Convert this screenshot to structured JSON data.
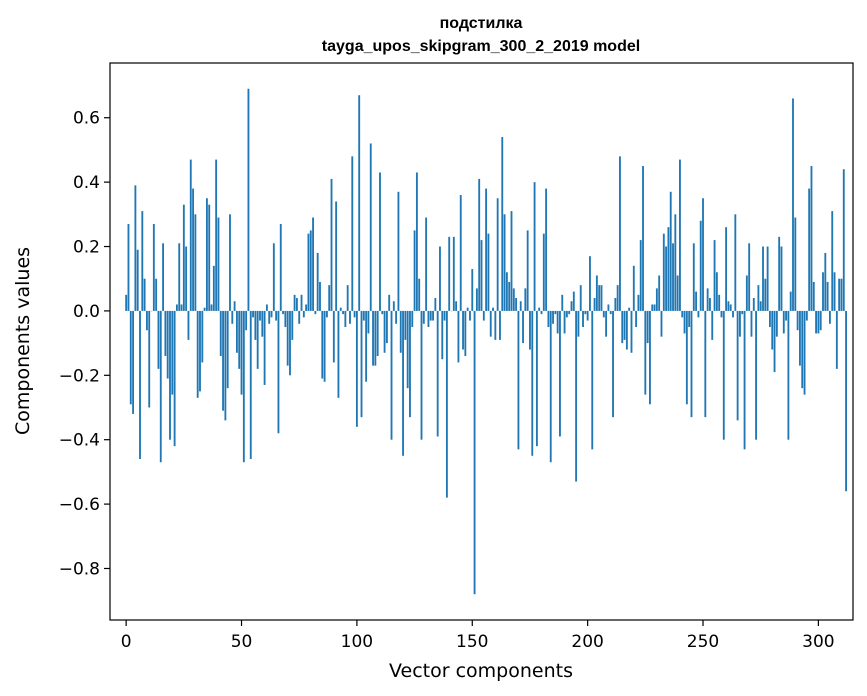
{
  "chart_data": {
    "type": "bar",
    "title_line1": "подстилка",
    "title_line2": "tayga_upos_skipgram_300_2_2019 model",
    "xlabel": "Vector components",
    "ylabel": "Components values",
    "xlim": [
      -7,
      315
    ],
    "ylim": [
      -0.96,
      0.77
    ],
    "xticks": [
      0,
      50,
      100,
      150,
      200,
      250,
      300
    ],
    "xtick_labels": [
      "0",
      "50",
      "100",
      "150",
      "200",
      "250",
      "300"
    ],
    "yticks": [
      0.6,
      0.4,
      0.2,
      0.0,
      -0.2,
      -0.4,
      -0.6,
      -0.8
    ],
    "ytick_labels": [
      "0.6",
      "0.4",
      "0.2",
      "0.0",
      "−0.2",
      "−0.4",
      "−0.6",
      "−0.8"
    ],
    "bar_color": "#1f77b4",
    "values": [
      0.05,
      0.27,
      -0.29,
      -0.32,
      0.39,
      0.19,
      -0.46,
      0.31,
      0.1,
      -0.06,
      -0.3,
      0.0,
      0.27,
      0.1,
      -0.18,
      -0.47,
      0.21,
      -0.14,
      -0.21,
      -0.4,
      -0.26,
      -0.42,
      0.02,
      0.21,
      0.02,
      0.33,
      0.2,
      -0.09,
      0.47,
      0.38,
      0.3,
      -0.27,
      -0.25,
      -0.16,
      0.01,
      0.35,
      0.33,
      0.02,
      0.14,
      0.47,
      0.29,
      -0.14,
      -0.31,
      -0.34,
      -0.24,
      0.3,
      -0.04,
      0.03,
      -0.13,
      -0.18,
      -0.26,
      -0.47,
      -0.06,
      0.69,
      -0.46,
      -0.02,
      -0.09,
      -0.18,
      -0.03,
      -0.08,
      -0.23,
      0.02,
      -0.04,
      -0.02,
      0.21,
      -0.03,
      -0.38,
      0.27,
      -0.01,
      -0.05,
      -0.17,
      -0.2,
      -0.09,
      0.05,
      0.04,
      -0.04,
      0.05,
      -0.02,
      0.02,
      0.24,
      0.25,
      0.29,
      -0.01,
      0.18,
      0.09,
      -0.21,
      -0.22,
      -0.02,
      0.08,
      0.41,
      -0.16,
      0.34,
      -0.27,
      0.01,
      -0.01,
      -0.05,
      0.08,
      -0.04,
      0.48,
      -0.02,
      -0.36,
      0.67,
      -0.33,
      -0.03,
      -0.22,
      -0.07,
      0.52,
      -0.17,
      -0.17,
      -0.14,
      0.43,
      -0.01,
      -0.13,
      -0.1,
      0.05,
      -0.4,
      0.03,
      -0.04,
      0.37,
      -0.13,
      -0.45,
      -0.09,
      -0.24,
      -0.33,
      -0.05,
      0.25,
      0.43,
      0.1,
      -0.4,
      -0.04,
      0.29,
      -0.05,
      -0.03,
      -0.03,
      0.04,
      -0.39,
      0.2,
      -0.15,
      -0.03,
      -0.58,
      0.23,
      0.0,
      0.23,
      0.03,
      -0.16,
      0.36,
      -0.12,
      -0.14,
      0.01,
      -0.03,
      0.13,
      -0.88,
      0.07,
      0.41,
      0.22,
      -0.03,
      0.38,
      0.24,
      -0.08,
      0.01,
      -0.09,
      0.35,
      -0.09,
      0.54,
      0.3,
      0.12,
      0.09,
      0.31,
      0.07,
      0.04,
      -0.43,
      0.03,
      -0.1,
      0.07,
      0.25,
      -0.12,
      -0.45,
      0.4,
      -0.42,
      0.01,
      -0.01,
      0.24,
      0.38,
      -0.05,
      -0.47,
      -0.04,
      -0.01,
      -0.07,
      -0.39,
      0.05,
      -0.07,
      -0.02,
      -0.01,
      0.03,
      0.06,
      -0.53,
      -0.08,
      0.08,
      -0.05,
      -0.01,
      -0.03,
      0.17,
      -0.43,
      0.04,
      0.11,
      0.08,
      0.08,
      -0.02,
      -0.08,
      0.02,
      -0.01,
      -0.33,
      0.04,
      0.08,
      0.48,
      -0.1,
      -0.09,
      -0.12,
      0.01,
      -0.13,
      0.14,
      -0.05,
      0.05,
      0.22,
      0.45,
      -0.26,
      -0.1,
      -0.29,
      0.02,
      0.02,
      0.07,
      0.11,
      -0.08,
      0.24,
      0.2,
      0.26,
      0.37,
      0.21,
      0.3,
      0.11,
      0.47,
      -0.02,
      -0.07,
      -0.29,
      -0.05,
      -0.33,
      0.21,
      0.06,
      -0.02,
      0.28,
      0.35,
      -0.33,
      0.07,
      0.04,
      -0.09,
      0.22,
      0.12,
      0.05,
      -0.02,
      -0.4,
      0.26,
      0.03,
      0.02,
      -0.02,
      0.3,
      -0.34,
      -0.08,
      -0.01,
      -0.43,
      0.11,
      0.21,
      -0.08,
      0.04,
      -0.4,
      0.08,
      0.03,
      0.2,
      0.1,
      0.2,
      -0.05,
      -0.12,
      -0.19,
      -0.08,
      0.23,
      0.2,
      -0.07,
      -0.03,
      -0.4,
      0.06,
      0.66,
      0.29,
      -0.06,
      -0.17,
      -0.24,
      -0.26,
      -0.03,
      0.38,
      0.45,
      0.09,
      -0.07,
      -0.07,
      -0.06,
      0.12,
      0.18,
      0.09,
      -0.04,
      0.31,
      0.12,
      -0.18,
      0.1,
      0.1,
      0.44,
      -0.56
    ]
  }
}
